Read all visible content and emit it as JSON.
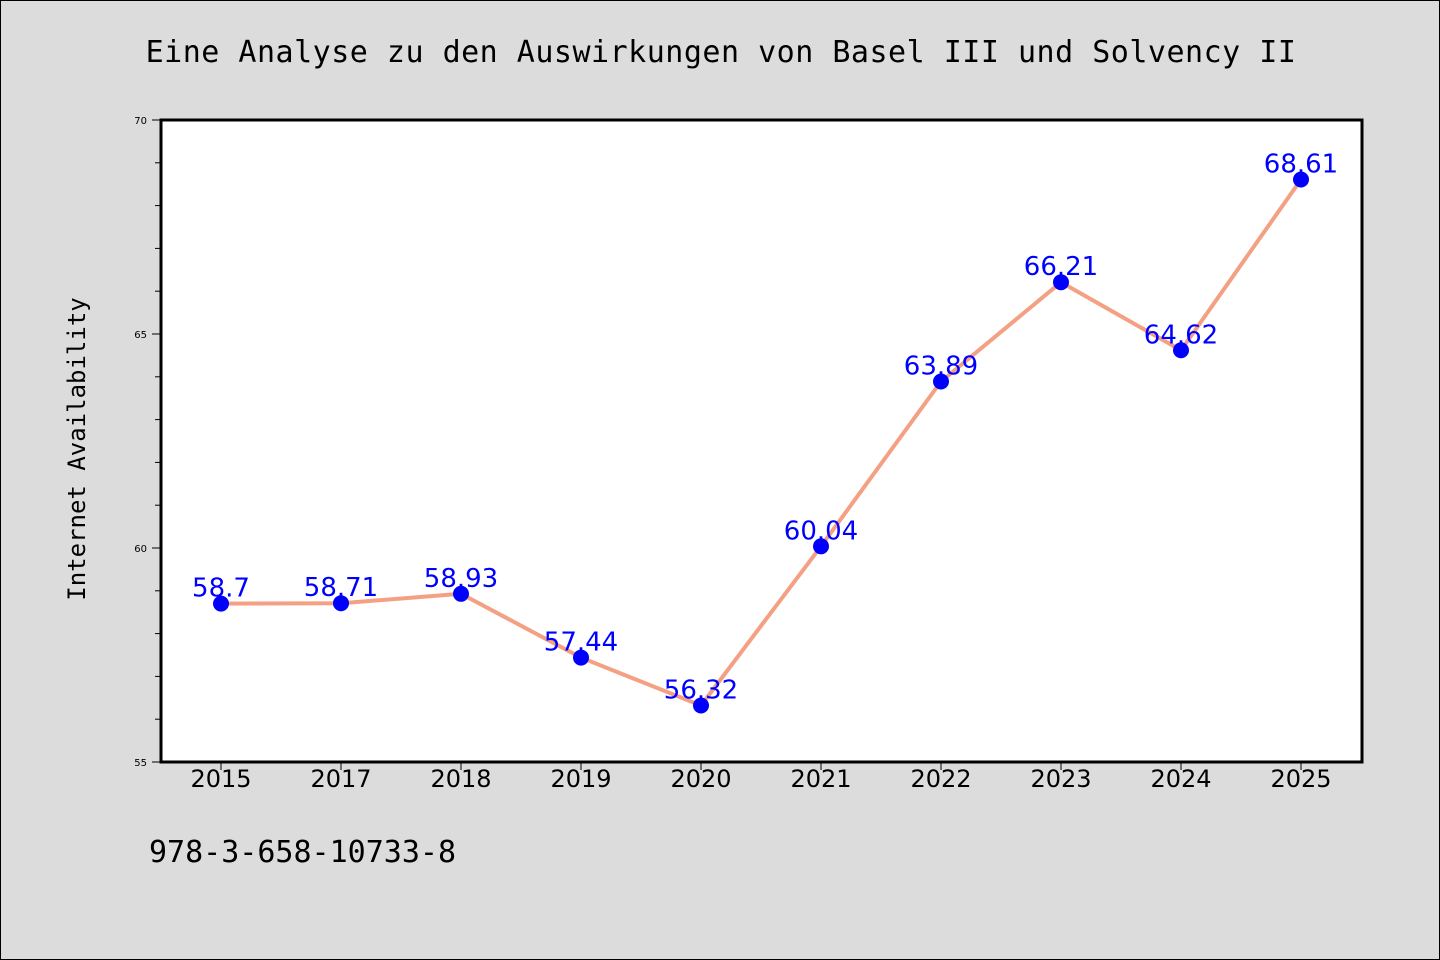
{
  "footer": {
    "text": "978-3-658-10733-8"
  },
  "colors": {
    "background": "#dcdcdc",
    "plot_background": "#ffffff",
    "line": "#f4a083",
    "marker": "#0000ff",
    "data_label": "#0000ff"
  },
  "chart_data": {
    "type": "line",
    "title": "Eine Analyse zu den Auswirkungen von Basel III und Solvency II",
    "xlabel": "",
    "ylabel": "Internet Availability",
    "categories": [
      "2015",
      "2017",
      "2018",
      "2019",
      "2020",
      "2021",
      "2022",
      "2023",
      "2024",
      "2025"
    ],
    "series": [
      {
        "values": [
          58.7,
          58.71,
          58.93,
          57.44,
          56.32,
          60.04,
          63.89,
          66.21,
          64.62,
          68.61
        ],
        "labels": [
          "58.7",
          "58.71",
          "58.93",
          "57.44",
          "56.32",
          "60.04",
          "63.89",
          "66.21",
          "64.62",
          "68.61"
        ]
      }
    ],
    "ylim": [
      55,
      70
    ],
    "yticks": [
      "55",
      "60",
      "65",
      "70"
    ],
    "grid": false,
    "legend": "none"
  }
}
